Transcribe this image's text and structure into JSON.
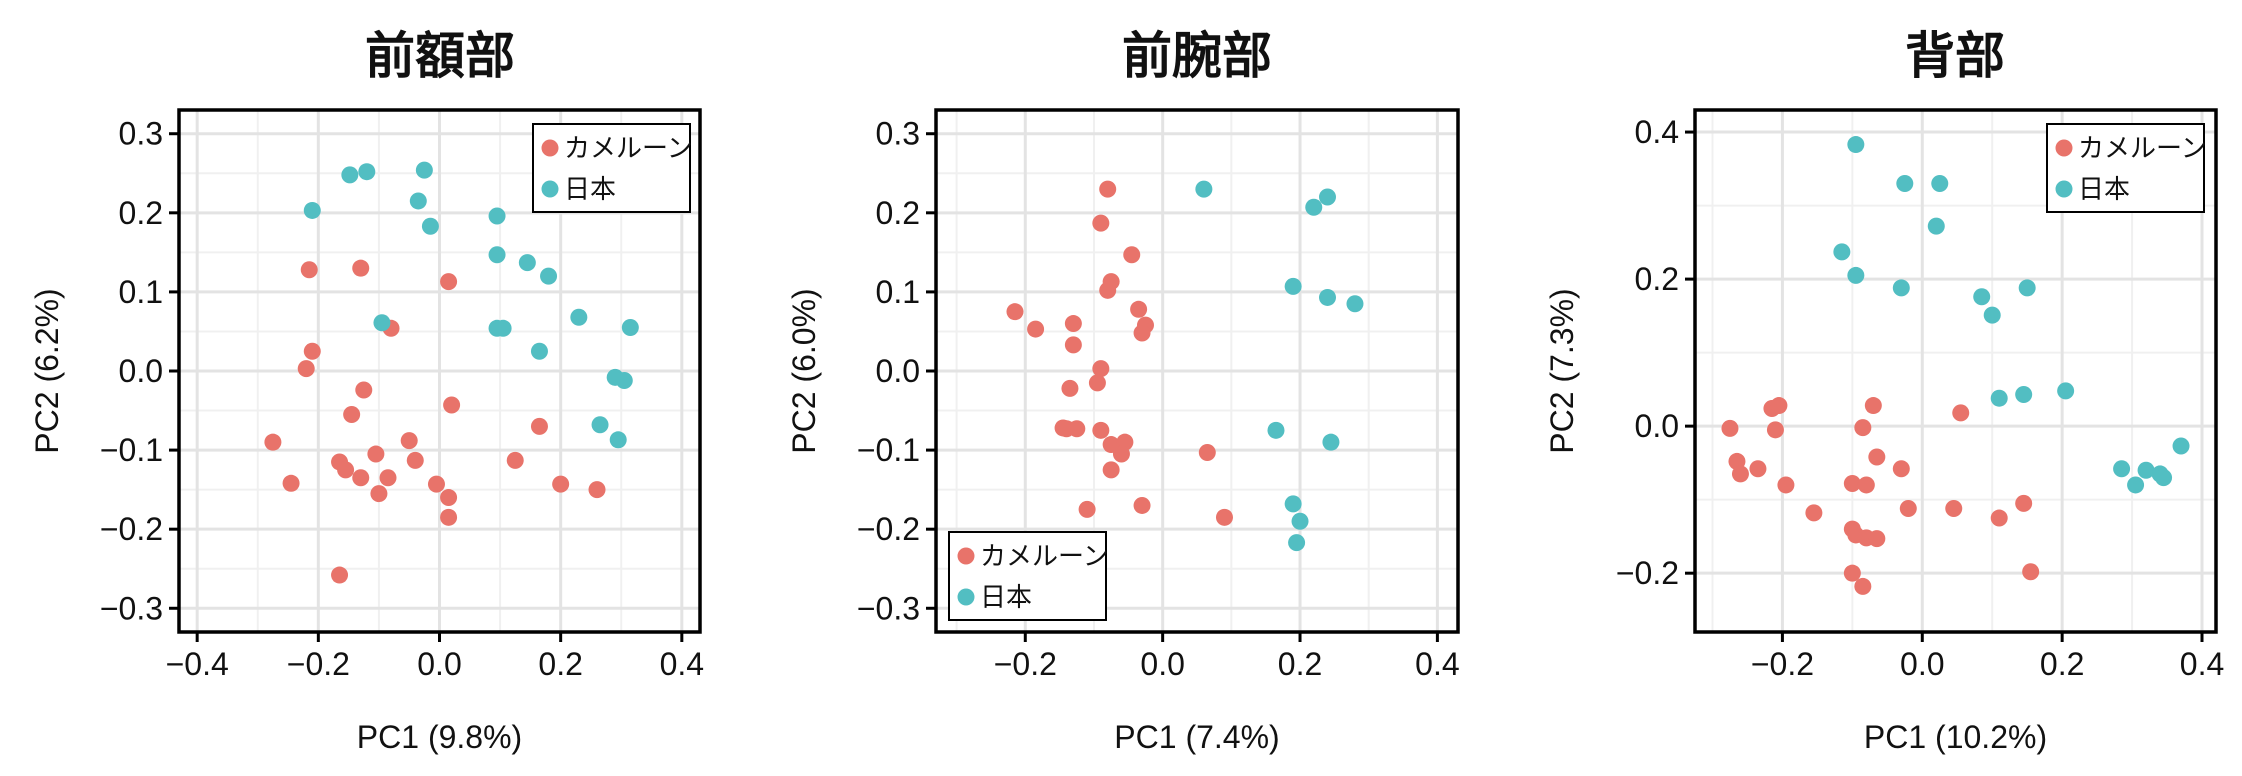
{
  "colors": {
    "cameroon": "#E8736A",
    "japan": "#52BEC2"
  },
  "chart_data": [
    {
      "type": "scatter",
      "title": "前額部",
      "xlabel": "PC1 (9.8%)",
      "ylabel": "PC2 (6.2%)",
      "xlim": [
        -0.43,
        0.43
      ],
      "ylim": [
        -0.33,
        0.33
      ],
      "xticks": [
        -0.4,
        -0.2,
        0.0,
        0.2,
        0.4
      ],
      "yticks": [
        -0.3,
        -0.2,
        -0.1,
        0.0,
        0.1,
        0.2,
        0.3
      ],
      "xtick_labels": [
        "−0.4",
        "−0.2",
        "0.0",
        "0.2",
        "0.4"
      ],
      "ytick_labels": [
        "−0.3",
        "−0.2",
        "−0.1",
        "0.0",
        "0.1",
        "0.2",
        "0.3"
      ],
      "grid": true,
      "legend_position": "top-right",
      "series": [
        {
          "name": "カメルーン",
          "color_key": "cameroon",
          "points": [
            [
              -0.215,
              0.128
            ],
            [
              -0.13,
              0.13
            ],
            [
              0.015,
              0.113
            ],
            [
              -0.21,
              0.025
            ],
            [
              -0.22,
              0.003
            ],
            [
              -0.08,
              0.054
            ],
            [
              -0.125,
              -0.024
            ],
            [
              -0.145,
              -0.055
            ],
            [
              0.02,
              -0.043
            ],
            [
              0.165,
              -0.07
            ],
            [
              -0.275,
              -0.09
            ],
            [
              -0.05,
              -0.088
            ],
            [
              -0.165,
              -0.115
            ],
            [
              -0.105,
              -0.105
            ],
            [
              -0.04,
              -0.113
            ],
            [
              -0.155,
              -0.125
            ],
            [
              -0.13,
              -0.135
            ],
            [
              -0.085,
              -0.135
            ],
            [
              0.125,
              -0.113
            ],
            [
              -0.245,
              -0.142
            ],
            [
              -0.1,
              -0.155
            ],
            [
              -0.005,
              -0.143
            ],
            [
              0.015,
              -0.16
            ],
            [
              0.2,
              -0.143
            ],
            [
              0.26,
              -0.15
            ],
            [
              0.015,
              -0.185
            ],
            [
              -0.165,
              -0.258
            ]
          ]
        },
        {
          "name": "日本",
          "color_key": "japan",
          "points": [
            [
              -0.148,
              0.248
            ],
            [
              -0.12,
              0.252
            ],
            [
              -0.025,
              0.254
            ],
            [
              -0.035,
              0.215
            ],
            [
              -0.21,
              0.203
            ],
            [
              -0.015,
              0.183
            ],
            [
              0.095,
              0.196
            ],
            [
              0.095,
              0.147
            ],
            [
              0.145,
              0.137
            ],
            [
              0.18,
              0.12
            ],
            [
              -0.095,
              0.061
            ],
            [
              0.095,
              0.054
            ],
            [
              0.105,
              0.054
            ],
            [
              0.23,
              0.068
            ],
            [
              0.315,
              0.055
            ],
            [
              0.165,
              0.025
            ],
            [
              0.29,
              -0.008
            ],
            [
              0.305,
              -0.012
            ],
            [
              0.265,
              -0.068
            ],
            [
              0.295,
              -0.087
            ]
          ]
        }
      ]
    },
    {
      "type": "scatter",
      "title": "前腕部",
      "xlabel": "PC1 (7.4%)",
      "ylabel": "PC2 (6.0%)",
      "xlim": [
        -0.33,
        0.43
      ],
      "ylim": [
        -0.33,
        0.33
      ],
      "xticks": [
        -0.2,
        0.0,
        0.2,
        0.4
      ],
      "yticks": [
        -0.3,
        -0.2,
        -0.1,
        0.0,
        0.1,
        0.2,
        0.3
      ],
      "xtick_labels": [
        "−0.2",
        "0.0",
        "0.2",
        "0.4"
      ],
      "ytick_labels": [
        "−0.3",
        "−0.2",
        "−0.1",
        "0.0",
        "0.1",
        "0.2",
        "0.3"
      ],
      "grid": true,
      "legend_position": "bottom-left",
      "series": [
        {
          "name": "カメルーン",
          "color_key": "cameroon",
          "points": [
            [
              -0.08,
              0.23
            ],
            [
              -0.09,
              0.187
            ],
            [
              -0.045,
              0.147
            ],
            [
              -0.075,
              0.113
            ],
            [
              -0.08,
              0.102
            ],
            [
              -0.215,
              0.075
            ],
            [
              -0.035,
              0.078
            ],
            [
              -0.185,
              0.053
            ],
            [
              -0.13,
              0.06
            ],
            [
              -0.025,
              0.058
            ],
            [
              -0.03,
              0.048
            ],
            [
              -0.13,
              0.033
            ],
            [
              -0.09,
              0.003
            ],
            [
              -0.095,
              -0.015
            ],
            [
              -0.135,
              -0.022
            ],
            [
              -0.145,
              -0.072
            ],
            [
              -0.14,
              -0.073
            ],
            [
              -0.125,
              -0.073
            ],
            [
              -0.09,
              -0.075
            ],
            [
              -0.075,
              -0.093
            ],
            [
              -0.055,
              -0.09
            ],
            [
              -0.06,
              -0.105
            ],
            [
              -0.075,
              -0.125
            ],
            [
              0.065,
              -0.103
            ],
            [
              -0.11,
              -0.175
            ],
            [
              -0.03,
              -0.17
            ],
            [
              0.09,
              -0.185
            ]
          ]
        },
        {
          "name": "日本",
          "color_key": "japan",
          "points": [
            [
              0.06,
              0.23
            ],
            [
              0.24,
              0.22
            ],
            [
              0.22,
              0.207
            ],
            [
              0.19,
              0.107
            ],
            [
              0.24,
              0.093
            ],
            [
              0.28,
              0.085
            ],
            [
              0.165,
              -0.075
            ],
            [
              0.245,
              -0.09
            ],
            [
              0.19,
              -0.168
            ],
            [
              0.2,
              -0.19
            ],
            [
              0.195,
              -0.217
            ]
          ]
        }
      ]
    },
    {
      "type": "scatter",
      "title": "背部",
      "xlabel": "PC1 (10.2%)",
      "ylabel": "PC2 (7.3%)",
      "xlim": [
        -0.325,
        0.42
      ],
      "ylim": [
        -0.28,
        0.43
      ],
      "xticks": [
        -0.2,
        0.0,
        0.2,
        0.4
      ],
      "yticks": [
        -0.2,
        0.0,
        0.2,
        0.4
      ],
      "xtick_labels": [
        "−0.2",
        "0.0",
        "0.2",
        "0.4"
      ],
      "ytick_labels": [
        "−0.2",
        "0.0",
        "0.2",
        "0.4"
      ],
      "grid": true,
      "legend_position": "top-right",
      "series": [
        {
          "name": "カメルーン",
          "color_key": "cameroon",
          "points": [
            [
              -0.275,
              -0.003
            ],
            [
              -0.215,
              0.024
            ],
            [
              -0.205,
              0.028
            ],
            [
              -0.21,
              -0.005
            ],
            [
              -0.07,
              0.028
            ],
            [
              -0.085,
              -0.002
            ],
            [
              0.055,
              0.018
            ],
            [
              -0.265,
              -0.048
            ],
            [
              -0.26,
              -0.065
            ],
            [
              -0.235,
              -0.058
            ],
            [
              -0.065,
              -0.042
            ],
            [
              -0.03,
              -0.058
            ],
            [
              -0.195,
              -0.08
            ],
            [
              -0.1,
              -0.078
            ],
            [
              -0.08,
              -0.08
            ],
            [
              -0.155,
              -0.118
            ],
            [
              -0.02,
              -0.112
            ],
            [
              0.045,
              -0.112
            ],
            [
              0.11,
              -0.125
            ],
            [
              0.145,
              -0.105
            ],
            [
              -0.1,
              -0.14
            ],
            [
              -0.095,
              -0.148
            ],
            [
              -0.08,
              -0.152
            ],
            [
              -0.065,
              -0.153
            ],
            [
              -0.1,
              -0.2
            ],
            [
              -0.085,
              -0.218
            ],
            [
              0.155,
              -0.198
            ]
          ]
        },
        {
          "name": "日本",
          "color_key": "japan",
          "points": [
            [
              -0.095,
              0.383
            ],
            [
              -0.025,
              0.33
            ],
            [
              0.025,
              0.33
            ],
            [
              0.02,
              0.272
            ],
            [
              -0.115,
              0.237
            ],
            [
              -0.095,
              0.205
            ],
            [
              -0.03,
              0.188
            ],
            [
              0.085,
              0.176
            ],
            [
              0.15,
              0.188
            ],
            [
              0.1,
              0.151
            ],
            [
              0.11,
              0.038
            ],
            [
              0.145,
              0.043
            ],
            [
              0.205,
              0.048
            ],
            [
              0.285,
              -0.058
            ],
            [
              0.305,
              -0.08
            ],
            [
              0.32,
              -0.06
            ],
            [
              0.34,
              -0.065
            ],
            [
              0.345,
              -0.07
            ],
            [
              0.37,
              -0.027
            ]
          ]
        }
      ]
    }
  ]
}
